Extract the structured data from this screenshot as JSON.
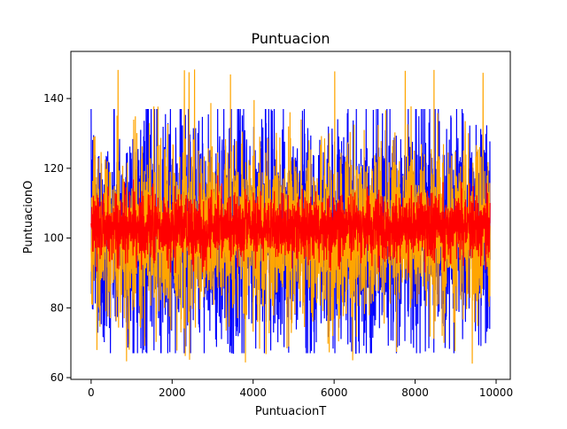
{
  "chart_data": {
    "type": "line",
    "title": "Puntuacion",
    "xlabel": "PuntuacionT",
    "ylabel": "PuntuacionO",
    "xlim": [
      -500,
      10350
    ],
    "ylim": [
      59.5,
      153.5
    ],
    "x_ticks": [
      0,
      2000,
      4000,
      6000,
      8000,
      10000
    ],
    "y_ticks": [
      60,
      80,
      100,
      120,
      140
    ],
    "x_tick_labels": [
      "0",
      "2000",
      "4000",
      "6000",
      "8000",
      "10000"
    ],
    "y_tick_labels": [
      "60",
      "80",
      "100",
      "120",
      "140"
    ],
    "grid": false,
    "legend": "none",
    "series": [
      {
        "color": "#0000ff",
        "x_range": [
          0,
          9850
        ],
        "points": 9851,
        "center": 102,
        "min": 67,
        "max": 137,
        "typical_low": 73,
        "typical_high": 131
      },
      {
        "color": "#ffa500",
        "x_range": [
          0,
          9850
        ],
        "points": 9851,
        "center": 102,
        "min": 64,
        "max": 149,
        "typical_low": 78,
        "typical_high": 123
      },
      {
        "color": "#ff0000",
        "x_range": [
          0,
          9850
        ],
        "points": 9851,
        "center": 103,
        "min": 90,
        "max": 118,
        "typical_low": 95,
        "typical_high": 112
      }
    ]
  }
}
